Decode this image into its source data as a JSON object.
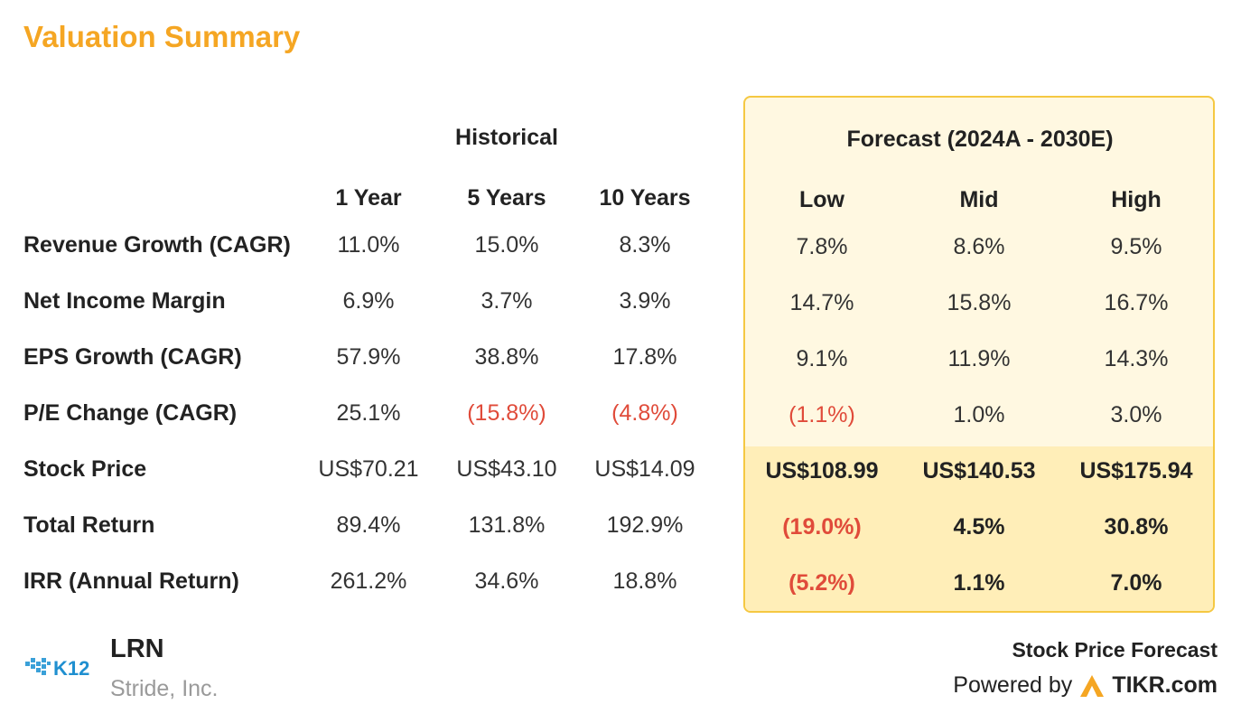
{
  "title": "Valuation Summary",
  "colors": {
    "accent": "#f5a623",
    "negative": "#e04b3a",
    "forecast_bg": "#fff8e1",
    "forecast_border": "#f5c842"
  },
  "groups": {
    "historical": "Historical",
    "forecast": "Forecast (2024A - 2030E)"
  },
  "columns": [
    "1 Year",
    "5 Years",
    "10 Years",
    "Low",
    "Mid",
    "High"
  ],
  "rows": [
    {
      "label": "Revenue Growth (CAGR)",
      "values": [
        "11.0%",
        "15.0%",
        "8.3%",
        "7.8%",
        "8.6%",
        "9.5%"
      ],
      "negative": [
        false,
        false,
        false,
        false,
        false,
        false
      ]
    },
    {
      "label": "Net Income Margin",
      "values": [
        "6.9%",
        "3.7%",
        "3.9%",
        "14.7%",
        "15.8%",
        "16.7%"
      ],
      "negative": [
        false,
        false,
        false,
        false,
        false,
        false
      ]
    },
    {
      "label": "EPS Growth (CAGR)",
      "values": [
        "57.9%",
        "38.8%",
        "17.8%",
        "9.1%",
        "11.9%",
        "14.3%"
      ],
      "negative": [
        false,
        false,
        false,
        false,
        false,
        false
      ]
    },
    {
      "label": "P/E Change (CAGR)",
      "values": [
        "25.1%",
        "(15.8%)",
        "(4.8%)",
        "(1.1%)",
        "1.0%",
        "3.0%"
      ],
      "negative": [
        false,
        true,
        true,
        true,
        false,
        false
      ]
    },
    {
      "label": "Stock Price",
      "values": [
        "US$70.21",
        "US$43.10",
        "US$14.09",
        "US$108.99",
        "US$140.53",
        "US$175.94"
      ],
      "negative": [
        false,
        false,
        false,
        false,
        false,
        false
      ]
    },
    {
      "label": "Total Return",
      "values": [
        "89.4%",
        "131.8%",
        "192.9%",
        "(19.0%)",
        "4.5%",
        "30.8%"
      ],
      "negative": [
        false,
        false,
        false,
        true,
        false,
        false
      ]
    },
    {
      "label": "IRR (Annual Return)",
      "values": [
        "261.2%",
        "34.6%",
        "18.8%",
        "(5.2%)",
        "1.1%",
        "7.0%"
      ],
      "negative": [
        false,
        false,
        false,
        true,
        false,
        false
      ]
    }
  ],
  "footer": {
    "logo_text": "K12",
    "ticker": "LRN",
    "company": "Stride, Inc.",
    "forecast_label": "Stock Price Forecast",
    "powered_by": "Powered by",
    "brand": "TIKR.com"
  }
}
